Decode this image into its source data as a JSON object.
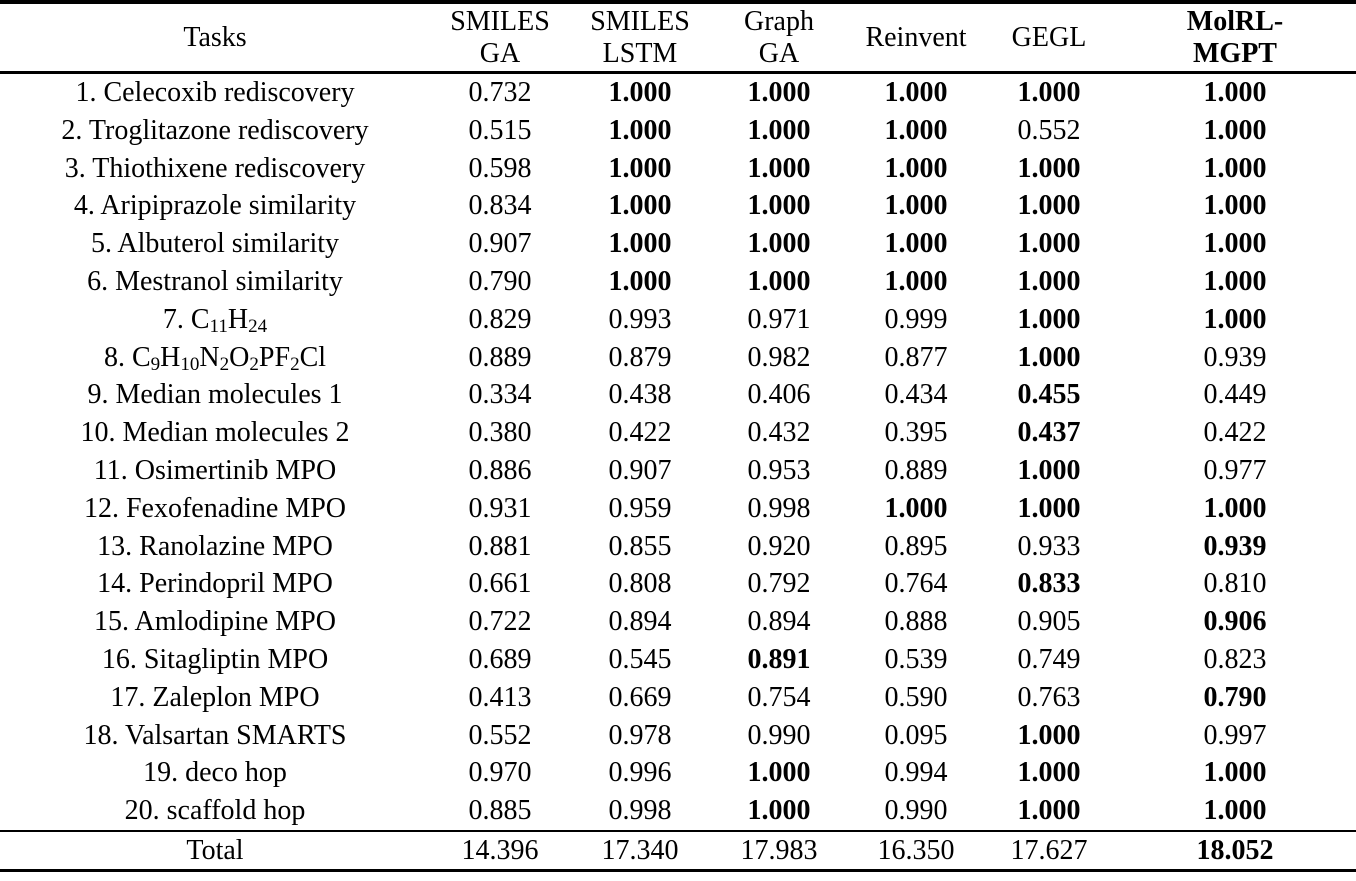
{
  "table": {
    "columns": [
      {
        "label": "Tasks",
        "bold": false
      },
      {
        "label": "SMILES\nGA",
        "bold": false
      },
      {
        "label": "SMILES\nLSTM",
        "bold": false
      },
      {
        "label": "Graph\nGA",
        "bold": false
      },
      {
        "label": "Reinvent",
        "bold": false
      },
      {
        "label": "GEGL",
        "bold": false
      },
      {
        "label": "MolRL-\nMGPT",
        "bold": true
      }
    ],
    "rows": [
      {
        "task": "1. Celecoxib rediscovery",
        "values": [
          "0.732",
          "1.000",
          "1.000",
          "1.000",
          "1.000",
          "1.000"
        ],
        "bold": [
          0,
          1,
          1,
          1,
          1,
          1
        ]
      },
      {
        "task": "2. Troglitazone rediscovery",
        "values": [
          "0.515",
          "1.000",
          "1.000",
          "1.000",
          "0.552",
          "1.000"
        ],
        "bold": [
          0,
          1,
          1,
          1,
          0,
          1
        ]
      },
      {
        "task": "3. Thiothixene rediscovery",
        "values": [
          "0.598",
          "1.000",
          "1.000",
          "1.000",
          "1.000",
          "1.000"
        ],
        "bold": [
          0,
          1,
          1,
          1,
          1,
          1
        ]
      },
      {
        "task": "4. Aripiprazole similarity",
        "values": [
          "0.834",
          "1.000",
          "1.000",
          "1.000",
          "1.000",
          "1.000"
        ],
        "bold": [
          0,
          1,
          1,
          1,
          1,
          1
        ]
      },
      {
        "task": "5. Albuterol similarity",
        "values": [
          "0.907",
          "1.000",
          "1.000",
          "1.000",
          "1.000",
          "1.000"
        ],
        "bold": [
          0,
          1,
          1,
          1,
          1,
          1
        ]
      },
      {
        "task": "6. Mestranol similarity",
        "values": [
          "0.790",
          "1.000",
          "1.000",
          "1.000",
          "1.000",
          "1.000"
        ],
        "bold": [
          0,
          1,
          1,
          1,
          1,
          1
        ]
      },
      {
        "task": "7. C_{11}H_{24}",
        "values": [
          "0.829",
          "0.993",
          "0.971",
          "0.999",
          "1.000",
          "1.000"
        ],
        "bold": [
          0,
          0,
          0,
          0,
          1,
          1
        ]
      },
      {
        "task": "8. C_{9}H_{10}N_{2}O_{2}PF_{2}Cl",
        "values": [
          "0.889",
          "0.879",
          "0.982",
          "0.877",
          "1.000",
          "0.939"
        ],
        "bold": [
          0,
          0,
          0,
          0,
          1,
          0
        ]
      },
      {
        "task": "9. Median molecules 1",
        "values": [
          "0.334",
          "0.438",
          "0.406",
          "0.434",
          "0.455",
          "0.449"
        ],
        "bold": [
          0,
          0,
          0,
          0,
          1,
          0
        ]
      },
      {
        "task": "10. Median molecules 2",
        "values": [
          "0.380",
          "0.422",
          "0.432",
          "0.395",
          "0.437",
          "0.422"
        ],
        "bold": [
          0,
          0,
          0,
          0,
          1,
          0
        ]
      },
      {
        "task": "11. Osimertinib MPO",
        "values": [
          "0.886",
          "0.907",
          "0.953",
          "0.889",
          "1.000",
          "0.977"
        ],
        "bold": [
          0,
          0,
          0,
          0,
          1,
          0
        ]
      },
      {
        "task": "12. Fexofenadine MPO",
        "values": [
          "0.931",
          "0.959",
          "0.998",
          "1.000",
          "1.000",
          "1.000"
        ],
        "bold": [
          0,
          0,
          0,
          1,
          1,
          1
        ]
      },
      {
        "task": "13. Ranolazine MPO",
        "values": [
          "0.881",
          "0.855",
          "0.920",
          "0.895",
          "0.933",
          "0.939"
        ],
        "bold": [
          0,
          0,
          0,
          0,
          0,
          1
        ]
      },
      {
        "task": "14. Perindopril MPO",
        "values": [
          "0.661",
          "0.808",
          "0.792",
          "0.764",
          "0.833",
          "0.810"
        ],
        "bold": [
          0,
          0,
          0,
          0,
          1,
          0
        ]
      },
      {
        "task": "15. Amlodipine MPO",
        "values": [
          "0.722",
          "0.894",
          "0.894",
          "0.888",
          "0.905",
          "0.906"
        ],
        "bold": [
          0,
          0,
          0,
          0,
          0,
          1
        ]
      },
      {
        "task": "16. Sitagliptin MPO",
        "values": [
          "0.689",
          "0.545",
          "0.891",
          "0.539",
          "0.749",
          "0.823"
        ],
        "bold": [
          0,
          0,
          1,
          0,
          0,
          0
        ]
      },
      {
        "task": "17. Zaleplon MPO",
        "values": [
          "0.413",
          "0.669",
          "0.754",
          "0.590",
          "0.763",
          "0.790"
        ],
        "bold": [
          0,
          0,
          0,
          0,
          0,
          1
        ]
      },
      {
        "task": "18. Valsartan SMARTS",
        "values": [
          "0.552",
          "0.978",
          "0.990",
          "0.095",
          "1.000",
          "0.997"
        ],
        "bold": [
          0,
          0,
          0,
          0,
          1,
          0
        ]
      },
      {
        "task": "19. deco hop",
        "values": [
          "0.970",
          "0.996",
          "1.000",
          "0.994",
          "1.000",
          "1.000"
        ],
        "bold": [
          0,
          0,
          1,
          0,
          1,
          1
        ]
      },
      {
        "task": "20. scaffold hop",
        "values": [
          "0.885",
          "0.998",
          "1.000",
          "0.990",
          "1.000",
          "1.000"
        ],
        "bold": [
          0,
          0,
          1,
          0,
          1,
          1
        ]
      }
    ],
    "total": {
      "label": "Total",
      "values": [
        "14.396",
        "17.340",
        "17.983",
        "16.350",
        "17.627",
        "18.052"
      ],
      "bold": [
        0,
        0,
        0,
        0,
        0,
        1
      ]
    }
  }
}
